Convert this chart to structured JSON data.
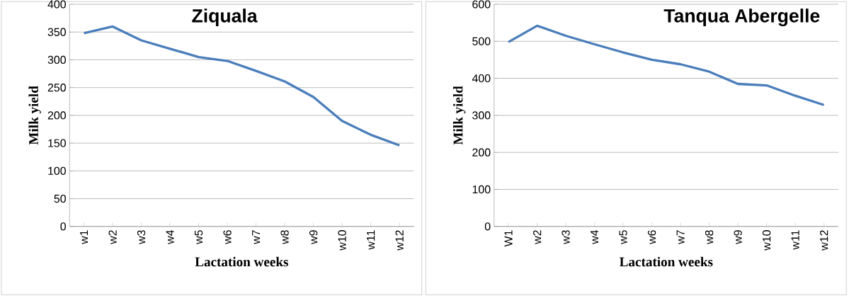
{
  "chart_data": [
    {
      "type": "line",
      "title": "Ziquala",
      "xlabel": "Lactation weeks",
      "ylabel": "Milk yield",
      "categories": [
        "w1",
        "w2",
        "w3",
        "w4",
        "w5",
        "w6",
        "w7",
        "w8",
        "w9",
        "w10",
        "w11",
        "w12"
      ],
      "series": [
        {
          "color": "#4a7ebb",
          "values": [
            348,
            360,
            335,
            320,
            305,
            298,
            280,
            261,
            233,
            190,
            165,
            146
          ]
        }
      ],
      "ylim": [
        0,
        400
      ],
      "yticks": [
        0,
        50,
        100,
        150,
        200,
        250,
        300,
        350,
        400
      ],
      "grid": "y",
      "marker": "none",
      "line_style": "solid"
    },
    {
      "type": "line",
      "title": "Tanqua Abergelle",
      "xlabel": "Lactation weeks",
      "ylabel": "Milk yield",
      "categories": [
        "W1",
        "w2",
        "w3",
        "w4",
        "w5",
        "w6",
        "w7",
        "w8",
        "w9",
        "w10",
        "w11",
        "w12"
      ],
      "series": [
        {
          "color": "#4a7ebb",
          "values": [
            498,
            542,
            515,
            492,
            470,
            450,
            438,
            418,
            385,
            381,
            353,
            328
          ]
        }
      ],
      "ylim": [
        0,
        600
      ],
      "yticks": [
        0,
        100,
        200,
        300,
        400,
        500,
        600
      ],
      "grid": "y",
      "marker": "none",
      "line_style": "solid"
    }
  ]
}
